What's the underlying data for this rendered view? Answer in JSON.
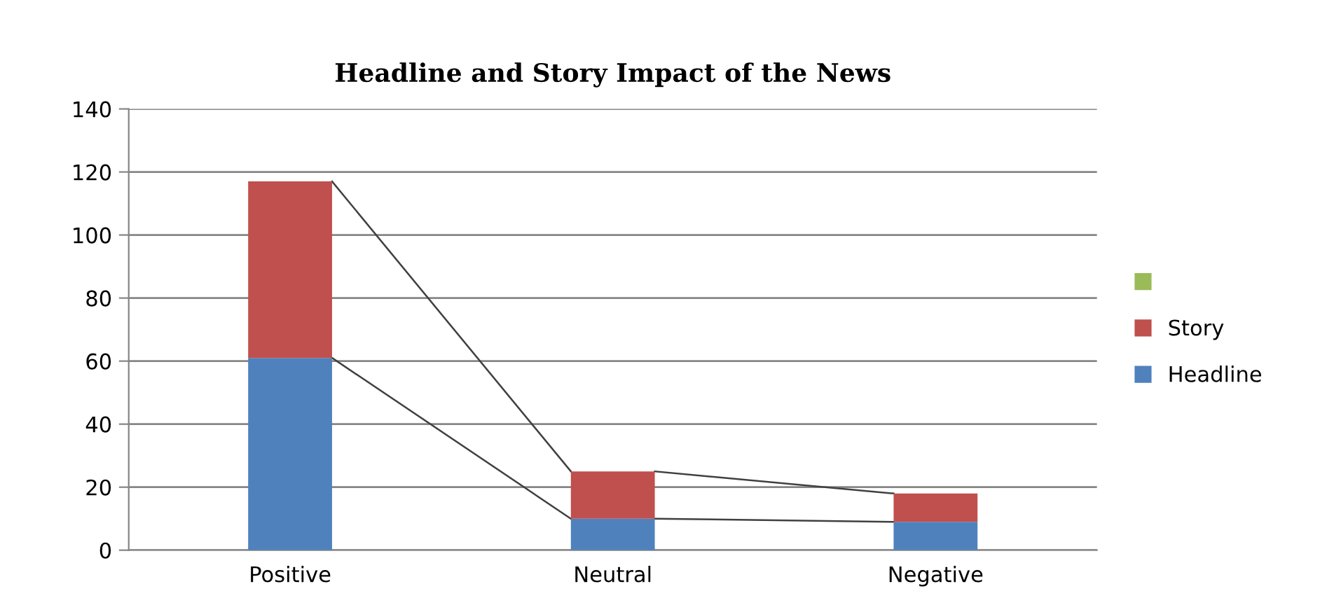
{
  "chart_data": {
    "type": "bar",
    "title": "Headline and Story Impact of the News",
    "categories": [
      "Positive",
      "Neutral",
      "Negative"
    ],
    "stacked": true,
    "series": [
      {
        "name": "Headline",
        "color": "#4f81bd",
        "values": [
          61,
          10,
          9
        ]
      },
      {
        "name": "Story",
        "color": "#c0504d",
        "values": [
          56,
          15,
          9
        ]
      },
      {
        "color": "#9bbb59",
        "values": [
          null,
          null,
          null
        ]
      }
    ],
    "ylim": [
      0,
      140
    ],
    "yticks": [
      0,
      20,
      40,
      60,
      80,
      100,
      120,
      140
    ],
    "grid": "y",
    "legend": "right"
  }
}
